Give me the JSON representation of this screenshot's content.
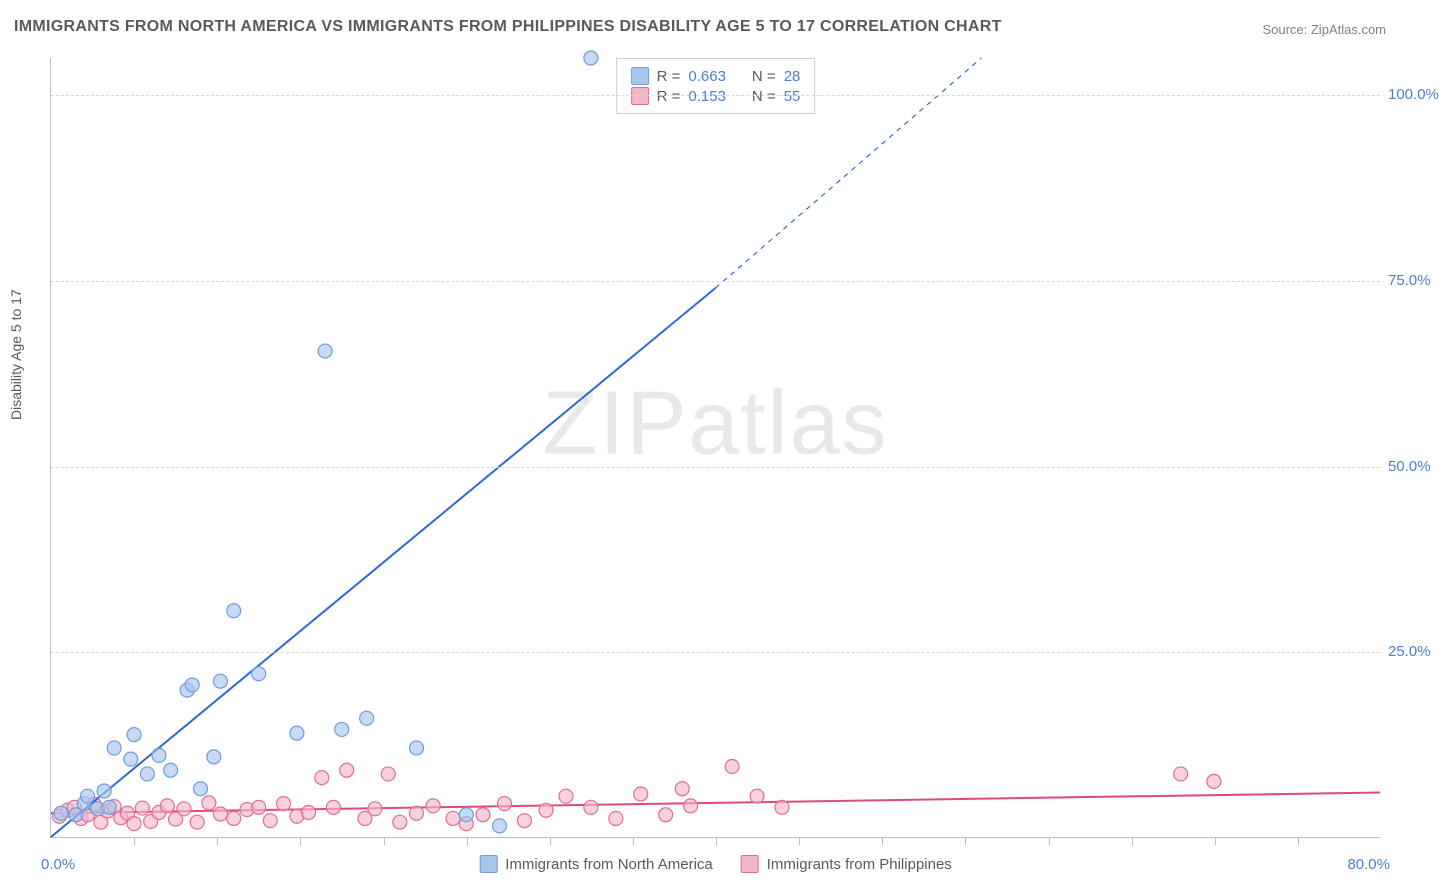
{
  "title": "IMMIGRANTS FROM NORTH AMERICA VS IMMIGRANTS FROM PHILIPPINES DISABILITY AGE 5 TO 17 CORRELATION CHART",
  "source": "Source: ZipAtlas.com",
  "ylabel": "Disability Age 5 to 17",
  "watermark": "ZIPatlas",
  "chart": {
    "type": "scatter",
    "background_color": "#ffffff",
    "grid_color": "#d8d8d8",
    "axis_color": "#bfbfbf",
    "xlim": [
      0,
      80
    ],
    "ylim": [
      0,
      105
    ],
    "x_tick_step": 5,
    "y_gridlines": [
      25,
      50,
      75,
      100
    ],
    "y_tick_labels": [
      "25.0%",
      "50.0%",
      "75.0%",
      "100.0%"
    ],
    "x_origin_label": "0.0%",
    "x_max_label": "80.0%",
    "ylabel_fontsize": 14,
    "title_fontsize": 16,
    "axis_label_color": "#4a7fd6",
    "marker_radius": 7,
    "marker_stroke_width": 1.2,
    "trend_line_width": 2
  },
  "series": [
    {
      "name": "Immigrants from North America",
      "color_fill": "#a8c6ec",
      "color_stroke": "#6d9de0",
      "trend_color": "#2f68d6",
      "r": "0.663",
      "n": "28",
      "trend": {
        "x1": 0,
        "y1": 0,
        "x2": 40,
        "y2": 74,
        "extend_x2": 56,
        "extend_y2": 105
      },
      "points": [
        [
          0.6,
          3.2
        ],
        [
          1.5,
          3.0
        ],
        [
          2.0,
          4.5
        ],
        [
          2.2,
          5.5
        ],
        [
          2.8,
          3.8
        ],
        [
          3.2,
          6.2
        ],
        [
          3.5,
          4.0
        ],
        [
          3.8,
          12.0
        ],
        [
          4.8,
          10.5
        ],
        [
          5.0,
          13.8
        ],
        [
          5.8,
          8.5
        ],
        [
          6.5,
          11.0
        ],
        [
          7.2,
          9.0
        ],
        [
          8.2,
          19.8
        ],
        [
          8.5,
          20.5
        ],
        [
          9.0,
          6.5
        ],
        [
          9.8,
          10.8
        ],
        [
          10.2,
          21.0
        ],
        [
          11.0,
          30.5
        ],
        [
          12.5,
          22.0
        ],
        [
          14.8,
          14.0
        ],
        [
          16.5,
          65.5
        ],
        [
          17.5,
          14.5
        ],
        [
          19.0,
          16.0
        ],
        [
          22.0,
          12.0
        ],
        [
          25.0,
          3.0
        ],
        [
          27.0,
          1.5
        ],
        [
          32.5,
          105.0
        ]
      ]
    },
    {
      "name": "Immigrants from Philippines",
      "color_fill": "#f2b8c8",
      "color_stroke": "#e26d93",
      "trend_color": "#e04a7a",
      "r": "0.153",
      "n": "55",
      "trend": {
        "x1": 0,
        "y1": 3.2,
        "x2": 80,
        "y2": 6.0
      },
      "points": [
        [
          0.5,
          2.8
        ],
        [
          1.0,
          3.6
        ],
        [
          1.4,
          4.0
        ],
        [
          1.8,
          2.5
        ],
        [
          2.2,
          3.0
        ],
        [
          2.6,
          4.4
        ],
        [
          3.0,
          2.0
        ],
        [
          3.4,
          3.5
        ],
        [
          3.8,
          4.1
        ],
        [
          4.2,
          2.6
        ],
        [
          4.6,
          3.2
        ],
        [
          5.0,
          1.8
        ],
        [
          5.5,
          3.9
        ],
        [
          6.0,
          2.1
        ],
        [
          6.5,
          3.3
        ],
        [
          7.0,
          4.2
        ],
        [
          7.5,
          2.4
        ],
        [
          8.0,
          3.8
        ],
        [
          8.8,
          2.0
        ],
        [
          9.5,
          4.6
        ],
        [
          10.2,
          3.1
        ],
        [
          11.0,
          2.5
        ],
        [
          11.8,
          3.7
        ],
        [
          12.5,
          4.0
        ],
        [
          13.2,
          2.2
        ],
        [
          14.0,
          4.5
        ],
        [
          14.8,
          2.8
        ],
        [
          15.5,
          3.3
        ],
        [
          16.3,
          8.0
        ],
        [
          17.0,
          4.0
        ],
        [
          17.8,
          9.0
        ],
        [
          18.9,
          2.5
        ],
        [
          19.5,
          3.8
        ],
        [
          20.3,
          8.5
        ],
        [
          21.0,
          2.0
        ],
        [
          22.0,
          3.2
        ],
        [
          23.0,
          4.2
        ],
        [
          24.2,
          2.5
        ],
        [
          25.0,
          1.8
        ],
        [
          26.0,
          3.0
        ],
        [
          27.3,
          4.5
        ],
        [
          28.5,
          2.2
        ],
        [
          29.8,
          3.6
        ],
        [
          31.0,
          5.5
        ],
        [
          32.5,
          4.0
        ],
        [
          34.0,
          2.5
        ],
        [
          35.5,
          5.8
        ],
        [
          37.0,
          3.0
        ],
        [
          38.0,
          6.5
        ],
        [
          38.5,
          4.2
        ],
        [
          41.0,
          9.5
        ],
        [
          42.5,
          5.5
        ],
        [
          44.0,
          4.0
        ],
        [
          68.0,
          8.5
        ],
        [
          70.0,
          7.5
        ]
      ]
    }
  ],
  "legend_top": {
    "r_label": "R =",
    "n_label": "N ="
  },
  "legend_bottom": {
    "items": [
      "Immigrants from North America",
      "Immigrants from Philippines"
    ]
  }
}
